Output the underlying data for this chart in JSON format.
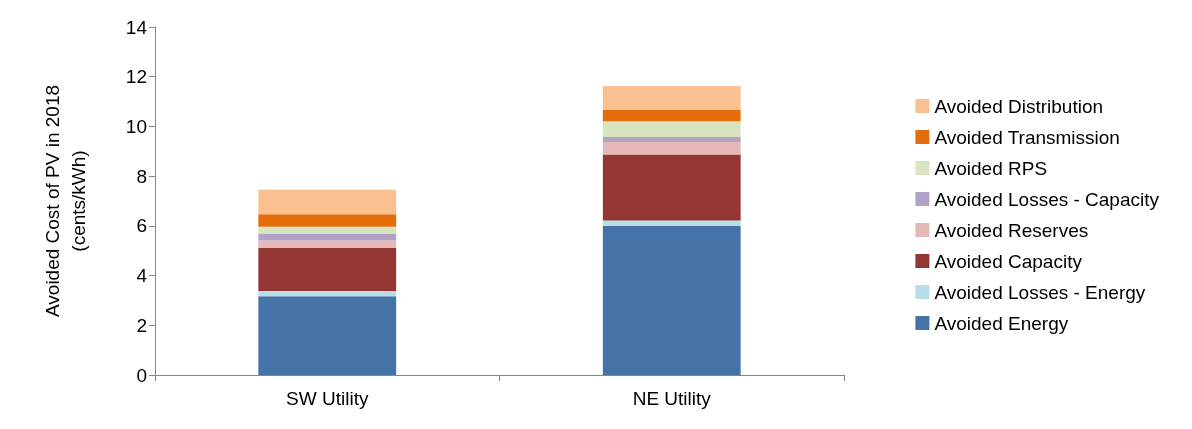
{
  "chart_data": {
    "type": "bar",
    "stacked": true,
    "ylabel": "Avoided Cost of PV in 2018\n(cents/kWh)",
    "categories": [
      "SW Utility",
      "NE Utility"
    ],
    "ylim": [
      0,
      14
    ],
    "yticks": [
      0,
      2,
      4,
      6,
      8,
      10,
      12,
      14
    ],
    "grid": false,
    "legend": "right",
    "series": [
      {
        "name": "Avoided Energy",
        "color": "#4573a7",
        "values": [
          3.17,
          6.0
        ]
      },
      {
        "name": "Avoided Losses - Energy",
        "color": "#b7dee8",
        "values": [
          0.21,
          0.22
        ]
      },
      {
        "name": "Avoided Capacity",
        "color": "#943634",
        "values": [
          1.74,
          2.65
        ]
      },
      {
        "name": "Avoided Reserves",
        "color": "#e6b9b8",
        "values": [
          0.29,
          0.5
        ]
      },
      {
        "name": "Avoided Losses - Capacity",
        "color": "#b3a2c7",
        "values": [
          0.26,
          0.2
        ]
      },
      {
        "name": "Avoided RPS",
        "color": "#d7e4bd",
        "values": [
          0.29,
          0.64
        ]
      },
      {
        "name": "Avoided Transmission",
        "color": "#e46c0a",
        "values": [
          0.51,
          0.45
        ]
      },
      {
        "name": "Avoided Distribution",
        "color": "#fac090",
        "values": [
          0.98,
          0.97
        ]
      }
    ]
  }
}
